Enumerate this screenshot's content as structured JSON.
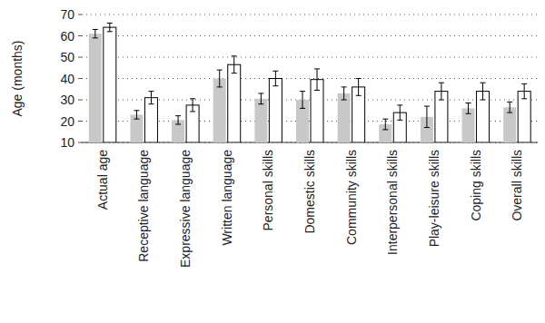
{
  "chart_data": {
    "type": "bar",
    "y_label": "Age (months)",
    "categories": [
      "Actual age",
      "Receptive language",
      "Expressive language",
      "Written language",
      "Personal skills",
      "Domestic skills",
      "Community skills",
      "Interpersonal skills",
      "Play-leisure skills",
      "Coping skills",
      "Overall skills"
    ],
    "series": [
      {
        "color": "#c8c8c8",
        "values": [
          61,
          23,
          20.5,
          40,
          30.5,
          30,
          33,
          18.5,
          22,
          26,
          26.5
        ],
        "errors": [
          2,
          2,
          2,
          4,
          2.5,
          4,
          3,
          2.5,
          5,
          2.5,
          2.5
        ]
      },
      {
        "color": "#ffffff",
        "values": [
          64,
          31,
          27.5,
          46.5,
          40,
          39.5,
          36,
          24,
          34,
          34,
          34
        ],
        "errors": [
          2,
          3,
          3,
          4,
          3.5,
          5,
          4,
          3.5,
          4,
          4,
          3.5
        ]
      }
    ],
    "ylim": [
      10,
      70
    ],
    "yticks": [
      10,
      20,
      30,
      40,
      50,
      60,
      70
    ],
    "grid": true
  }
}
